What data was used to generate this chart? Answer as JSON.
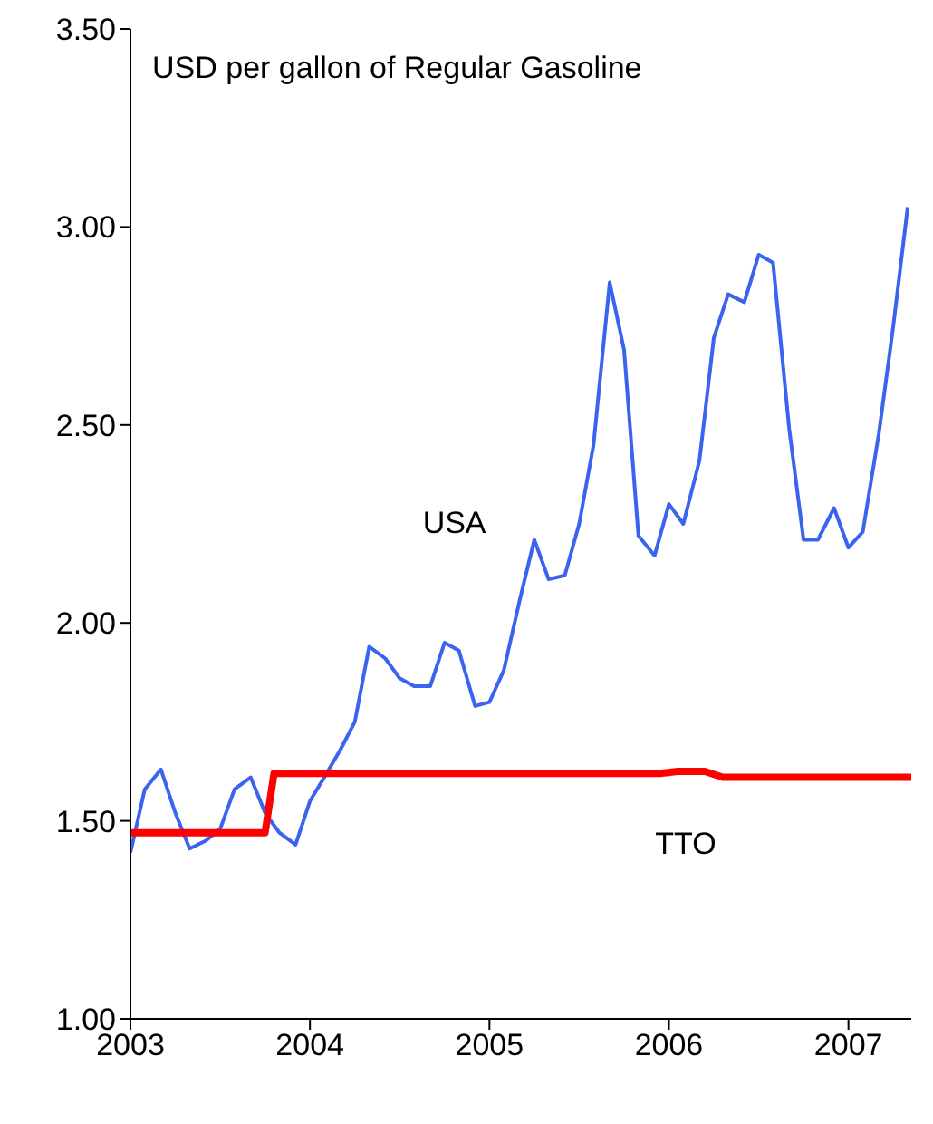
{
  "chart_data": {
    "type": "line",
    "title": "USD per gallon of Regular Gasoline",
    "xlim": [
      2003,
      2007.35
    ],
    "xticks": [
      2003,
      2004,
      2005,
      2006,
      2007
    ],
    "ylim": [
      1,
      3.5
    ],
    "yticks": [
      {
        "value": 1,
        "label": "1.00"
      },
      {
        "value": 1.5,
        "label": "1.50"
      },
      {
        "value": 2,
        "label": "2.00"
      },
      {
        "value": 2.5,
        "label": "2.50"
      },
      {
        "value": 3,
        "label": "3.00"
      },
      {
        "value": 3.5,
        "label": "3.50"
      }
    ],
    "grid": false,
    "marker": "none",
    "line_style": "solid",
    "series": [
      {
        "name": "USA",
        "color": "#3a64f0",
        "x": [
          2003.0,
          2003.08,
          2003.17,
          2003.25,
          2003.33,
          2003.42,
          2003.5,
          2003.58,
          2003.67,
          2003.75,
          2003.83,
          2003.92,
          2004.0,
          2004.08,
          2004.17,
          2004.25,
          2004.33,
          2004.42,
          2004.5,
          2004.58,
          2004.67,
          2004.75,
          2004.83,
          2004.92,
          2005.0,
          2005.08,
          2005.17,
          2005.25,
          2005.33,
          2005.42,
          2005.5,
          2005.58,
          2005.67,
          2005.75,
          2005.83,
          2005.92,
          2006.0,
          2006.08,
          2006.17,
          2006.25,
          2006.33,
          2006.42,
          2006.5,
          2006.58,
          2006.67,
          2006.75,
          2006.83,
          2006.92,
          2007.0,
          2007.08,
          2007.17,
          2007.25,
          2007.33
        ],
        "values": [
          1.42,
          1.58,
          1.63,
          1.52,
          1.43,
          1.45,
          1.48,
          1.58,
          1.61,
          1.52,
          1.47,
          1.44,
          1.55,
          1.61,
          1.68,
          1.75,
          1.94,
          1.91,
          1.86,
          1.84,
          1.84,
          1.95,
          1.93,
          1.79,
          1.8,
          1.88,
          2.06,
          2.21,
          2.11,
          2.12,
          2.25,
          2.45,
          2.86,
          2.69,
          2.22,
          2.17,
          2.3,
          2.25,
          2.41,
          2.72,
          2.83,
          2.81,
          2.93,
          2.91,
          2.49,
          2.21,
          2.21,
          2.29,
          2.19,
          2.23,
          2.48,
          2.75,
          3.05
        ]
      },
      {
        "name": "TTO",
        "color": "#ff0000",
        "x": [
          2003.0,
          2003.75,
          2003.8,
          2005.95,
          2006.05,
          2006.2,
          2006.3,
          2007.35
        ],
        "values": [
          1.47,
          1.47,
          1.62,
          1.62,
          1.625,
          1.625,
          1.61,
          1.61
        ]
      }
    ]
  }
}
